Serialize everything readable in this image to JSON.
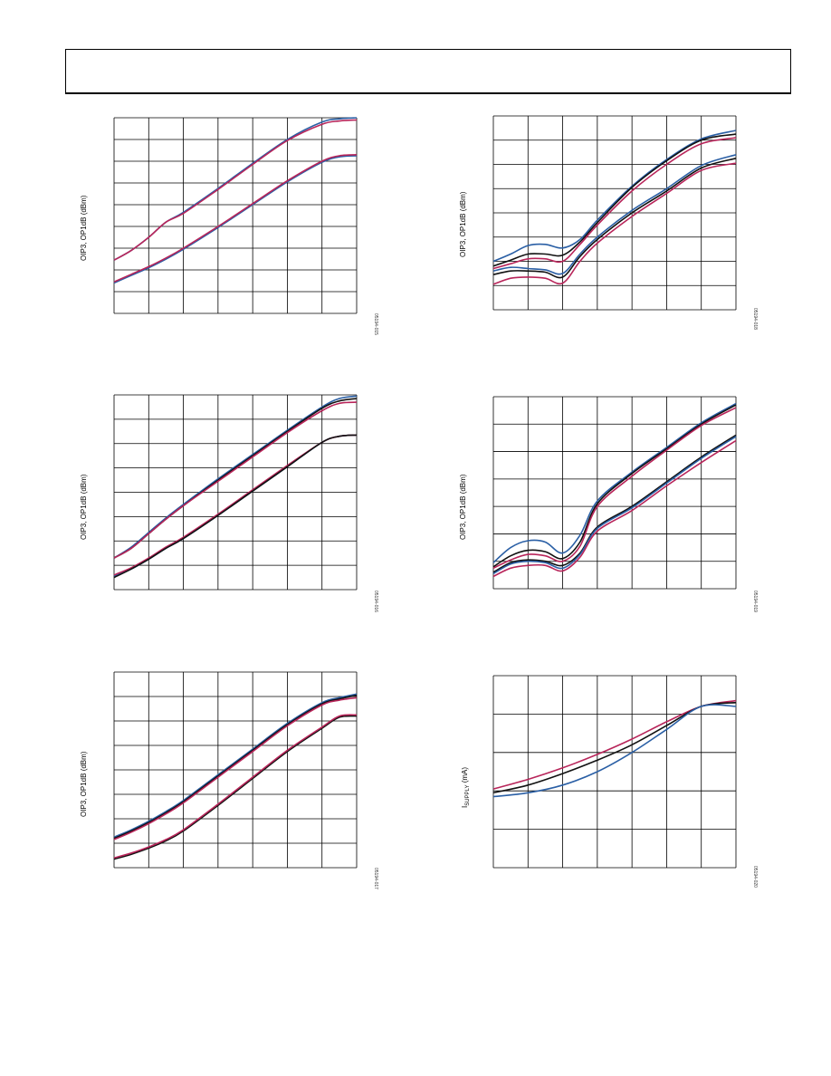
{
  "page": {
    "figure_ids": [
      "05194-015",
      "05194-018",
      "05194-016",
      "05194-019",
      "05194-017",
      "05194-020"
    ]
  },
  "colors": {
    "blue": "#2a5fa5",
    "red": "#b8255a",
    "black": "#111111",
    "grid": "#000000"
  },
  "chart_data": [
    {
      "id": "left-1",
      "type": "line",
      "ylabel": "OIP3, OP1dB (dBm)",
      "figure_id": "05194-015",
      "xlim": [
        0,
        7
      ],
      "ylim": [
        0,
        9
      ],
      "grid": true,
      "xdivisions": 7,
      "ydivisions": 9,
      "series": [
        {
          "color": "blue",
          "x": [
            0,
            0.5,
            1,
            1.5,
            2,
            3,
            4,
            5,
            6,
            6.5,
            7
          ],
          "y": [
            2.45,
            2.9,
            3.5,
            4.2,
            4.65,
            5.75,
            6.9,
            8.0,
            8.8,
            8.95,
            9.0
          ]
        },
        {
          "color": "red",
          "x": [
            0,
            0.5,
            1,
            1.5,
            2,
            3,
            4,
            5,
            6,
            6.5,
            7
          ],
          "y": [
            2.45,
            2.9,
            3.5,
            4.2,
            4.6,
            5.7,
            6.85,
            7.95,
            8.7,
            8.85,
            8.9
          ]
        },
        {
          "color": "blue",
          "x": [
            0,
            0.5,
            1,
            1.5,
            2,
            3,
            4,
            5,
            6,
            6.5,
            7
          ],
          "y": [
            1.4,
            1.75,
            2.1,
            2.5,
            2.95,
            3.95,
            5.0,
            6.05,
            6.95,
            7.2,
            7.25
          ]
        },
        {
          "color": "red",
          "x": [
            0,
            0.5,
            1,
            1.5,
            2,
            3,
            4,
            5,
            6,
            6.5,
            7
          ],
          "y": [
            1.45,
            1.8,
            2.15,
            2.55,
            3.0,
            4.0,
            5.05,
            6.1,
            7.0,
            7.25,
            7.3
          ]
        }
      ]
    },
    {
      "id": "right-1",
      "type": "line",
      "ylabel": "OIP3, OP1dB (dBm)",
      "figure_id": "05194-018",
      "xlim": [
        0,
        7
      ],
      "ylim": [
        0,
        8
      ],
      "grid": true,
      "xdivisions": 7,
      "ydivisions": 8,
      "series": [
        {
          "color": "blue",
          "x": [
            0,
            0.5,
            1,
            1.5,
            2,
            2.5,
            3,
            4,
            5,
            6,
            7
          ],
          "y": [
            2.0,
            2.3,
            2.65,
            2.7,
            2.55,
            2.9,
            3.7,
            5.1,
            6.2,
            7.05,
            7.4
          ]
        },
        {
          "color": "black",
          "x": [
            0,
            0.5,
            1,
            1.5,
            2,
            2.5,
            3,
            4,
            5,
            6,
            7
          ],
          "y": [
            1.8,
            2.05,
            2.3,
            2.3,
            2.25,
            2.8,
            3.6,
            5.05,
            6.15,
            7.0,
            7.25
          ]
        },
        {
          "color": "red",
          "x": [
            0,
            0.5,
            1,
            1.5,
            2,
            2.5,
            3,
            4,
            5,
            6,
            7
          ],
          "y": [
            1.7,
            1.9,
            2.1,
            2.1,
            2.0,
            2.7,
            3.5,
            4.9,
            6.0,
            6.85,
            7.1
          ]
        },
        {
          "color": "blue",
          "x": [
            0,
            0.5,
            1,
            1.5,
            2,
            2.5,
            3,
            4,
            5,
            6,
            7
          ],
          "y": [
            1.6,
            1.75,
            1.7,
            1.65,
            1.5,
            2.3,
            3.0,
            4.1,
            5.0,
            5.95,
            6.4
          ]
        },
        {
          "color": "black",
          "x": [
            0,
            0.5,
            1,
            1.5,
            2,
            2.5,
            3,
            4,
            5,
            6,
            7
          ],
          "y": [
            1.45,
            1.6,
            1.6,
            1.55,
            1.35,
            2.2,
            2.9,
            4.0,
            4.9,
            5.85,
            6.25
          ]
        },
        {
          "color": "red",
          "x": [
            0,
            0.5,
            1,
            1.5,
            2,
            2.5,
            3,
            4,
            5,
            6,
            7
          ],
          "y": [
            1.05,
            1.3,
            1.35,
            1.3,
            1.1,
            2.0,
            2.75,
            3.85,
            4.8,
            5.75,
            6.05
          ]
        }
      ]
    },
    {
      "id": "left-2",
      "type": "line",
      "ylabel": "OIP3, OP1dB (dBm)",
      "figure_id": "05194-016",
      "xlim": [
        0,
        7
      ],
      "ylim": [
        0,
        8
      ],
      "grid": true,
      "xdivisions": 7,
      "ydivisions": 8,
      "series": [
        {
          "color": "blue",
          "x": [
            0,
            0.5,
            1,
            1.5,
            2,
            3,
            4,
            5,
            6,
            6.5,
            7
          ],
          "y": [
            1.3,
            1.75,
            2.35,
            2.95,
            3.5,
            4.55,
            5.55,
            6.55,
            7.5,
            7.85,
            7.95
          ]
        },
        {
          "color": "black",
          "x": [
            0,
            0.5,
            1,
            1.5,
            2,
            3,
            4,
            5,
            6,
            6.5,
            7
          ],
          "y": [
            1.3,
            1.7,
            2.3,
            2.9,
            3.45,
            4.5,
            5.5,
            6.5,
            7.45,
            7.75,
            7.85
          ]
        },
        {
          "color": "red",
          "x": [
            0,
            0.5,
            1,
            1.5,
            2,
            3,
            4,
            5,
            6,
            6.5,
            7
          ],
          "y": [
            1.3,
            1.7,
            2.3,
            2.9,
            3.45,
            4.45,
            5.45,
            6.45,
            7.35,
            7.65,
            7.7
          ]
        },
        {
          "color": "blue",
          "x": [
            0,
            0.5,
            1,
            1.5,
            2,
            3,
            4,
            5,
            6,
            6.5,
            7
          ],
          "y": [
            0.55,
            0.85,
            1.25,
            1.7,
            2.1,
            3.05,
            4.05,
            5.05,
            6.05,
            6.3,
            6.35
          ]
        },
        {
          "color": "red",
          "x": [
            0,
            0.5,
            1,
            1.5,
            2,
            3,
            4,
            5,
            6,
            6.5,
            7
          ],
          "y": [
            0.6,
            0.9,
            1.3,
            1.75,
            2.15,
            3.1,
            4.1,
            5.1,
            6.05,
            6.3,
            6.35
          ]
        },
        {
          "color": "black",
          "x": [
            0,
            0.5,
            1,
            1.5,
            2,
            3,
            4,
            5,
            6,
            6.5,
            7
          ],
          "y": [
            0.5,
            0.85,
            1.25,
            1.7,
            2.1,
            3.05,
            4.05,
            5.05,
            6.05,
            6.3,
            6.35
          ]
        }
      ]
    },
    {
      "id": "right-2",
      "type": "line",
      "ylabel": "OIP3, OP1dB (dBm)",
      "figure_id": "05194-019",
      "xlim": [
        0,
        7
      ],
      "ylim": [
        0,
        7
      ],
      "grid": true,
      "xdivisions": 7,
      "ydivisions": 7,
      "series": [
        {
          "color": "blue",
          "x": [
            0,
            0.5,
            1,
            1.5,
            2,
            2.5,
            3,
            4,
            5,
            6,
            7
          ],
          "y": [
            0.95,
            1.5,
            1.75,
            1.7,
            1.3,
            1.95,
            3.2,
            4.25,
            5.15,
            6.05,
            6.75
          ]
        },
        {
          "color": "black",
          "x": [
            0,
            0.5,
            1,
            1.5,
            2,
            2.5,
            3,
            4,
            5,
            6,
            7
          ],
          "y": [
            0.8,
            1.2,
            1.4,
            1.35,
            1.1,
            1.7,
            3.1,
            4.2,
            5.1,
            6.0,
            6.7
          ]
        },
        {
          "color": "red",
          "x": [
            0,
            0.5,
            1,
            1.5,
            2,
            2.5,
            3,
            4,
            5,
            6,
            7
          ],
          "y": [
            0.75,
            1.05,
            1.25,
            1.2,
            1.0,
            1.55,
            3.0,
            4.1,
            5.05,
            5.95,
            6.6
          ]
        },
        {
          "color": "black",
          "x": [
            0,
            0.5,
            1,
            1.5,
            2,
            2.5,
            3,
            4,
            5,
            6,
            7
          ],
          "y": [
            0.6,
            0.95,
            1.05,
            1.0,
            0.85,
            1.3,
            2.25,
            3.0,
            3.9,
            4.8,
            5.6
          ]
        },
        {
          "color": "blue",
          "x": [
            0,
            0.5,
            1,
            1.5,
            2,
            2.5,
            3,
            4,
            5,
            6,
            7
          ],
          "y": [
            0.55,
            0.9,
            1.0,
            0.95,
            0.75,
            1.25,
            2.2,
            2.95,
            3.85,
            4.75,
            5.55
          ]
        },
        {
          "color": "red",
          "x": [
            0,
            0.5,
            1,
            1.5,
            2,
            2.5,
            3,
            4,
            5,
            6,
            7
          ],
          "y": [
            0.45,
            0.75,
            0.85,
            0.85,
            0.65,
            1.15,
            2.1,
            2.85,
            3.75,
            4.6,
            5.4
          ]
        }
      ]
    },
    {
      "id": "left-3",
      "type": "line",
      "ylabel": "OIP3, OP1dB (dBm)",
      "figure_id": "05194-017",
      "xlim": [
        0,
        7
      ],
      "ylim": [
        0,
        8
      ],
      "grid": true,
      "xdivisions": 7,
      "ydivisions": 8,
      "series": [
        {
          "color": "blue",
          "x": [
            0,
            0.5,
            1,
            1.5,
            2,
            3,
            4,
            5,
            6,
            6.5,
            7
          ],
          "y": [
            1.25,
            1.55,
            1.9,
            2.3,
            2.75,
            3.8,
            4.85,
            5.9,
            6.75,
            6.95,
            7.1
          ]
        },
        {
          "color": "black",
          "x": [
            0,
            0.5,
            1,
            1.5,
            2,
            3,
            4,
            5,
            6,
            6.5,
            7
          ],
          "y": [
            1.2,
            1.5,
            1.85,
            2.25,
            2.7,
            3.75,
            4.8,
            5.85,
            6.7,
            6.9,
            7.05
          ]
        },
        {
          "color": "red",
          "x": [
            0,
            0.5,
            1,
            1.5,
            2,
            3,
            4,
            5,
            6,
            6.5,
            7
          ],
          "y": [
            1.15,
            1.45,
            1.8,
            2.2,
            2.65,
            3.7,
            4.75,
            5.8,
            6.65,
            6.85,
            6.95
          ]
        },
        {
          "color": "black",
          "x": [
            0,
            0.5,
            1,
            1.5,
            2,
            3,
            4,
            5,
            6,
            6.5,
            7
          ],
          "y": [
            0.35,
            0.55,
            0.8,
            1.1,
            1.5,
            2.55,
            3.65,
            4.75,
            5.7,
            6.15,
            6.2
          ]
        },
        {
          "color": "red",
          "x": [
            0,
            0.5,
            1,
            1.5,
            2,
            3,
            4,
            5,
            6,
            6.5,
            7
          ],
          "y": [
            0.4,
            0.6,
            0.85,
            1.15,
            1.55,
            2.6,
            3.7,
            4.8,
            5.75,
            6.2,
            6.25
          ]
        }
      ]
    },
    {
      "id": "right-3",
      "type": "line",
      "ylabel": "I_SUPPLY (mA)",
      "figure_id": "05194-020",
      "xlim": [
        0,
        7
      ],
      "ylim": [
        0,
        5
      ],
      "grid": true,
      "xdivisions": 7,
      "ydivisions": 5,
      "series": [
        {
          "color": "red",
          "x": [
            0,
            1,
            2,
            3,
            4,
            5,
            6,
            7
          ],
          "y": [
            2.05,
            2.3,
            2.6,
            2.95,
            3.35,
            3.8,
            4.2,
            4.35
          ]
        },
        {
          "color": "black",
          "x": [
            0,
            1,
            2,
            3,
            4,
            5,
            6,
            7
          ],
          "y": [
            1.95,
            2.15,
            2.45,
            2.8,
            3.2,
            3.7,
            4.2,
            4.3
          ]
        },
        {
          "color": "blue",
          "x": [
            0,
            1,
            2,
            3,
            4,
            5,
            6,
            7
          ],
          "y": [
            1.85,
            1.95,
            2.15,
            2.5,
            3.0,
            3.6,
            4.2,
            4.2
          ]
        }
      ]
    }
  ]
}
